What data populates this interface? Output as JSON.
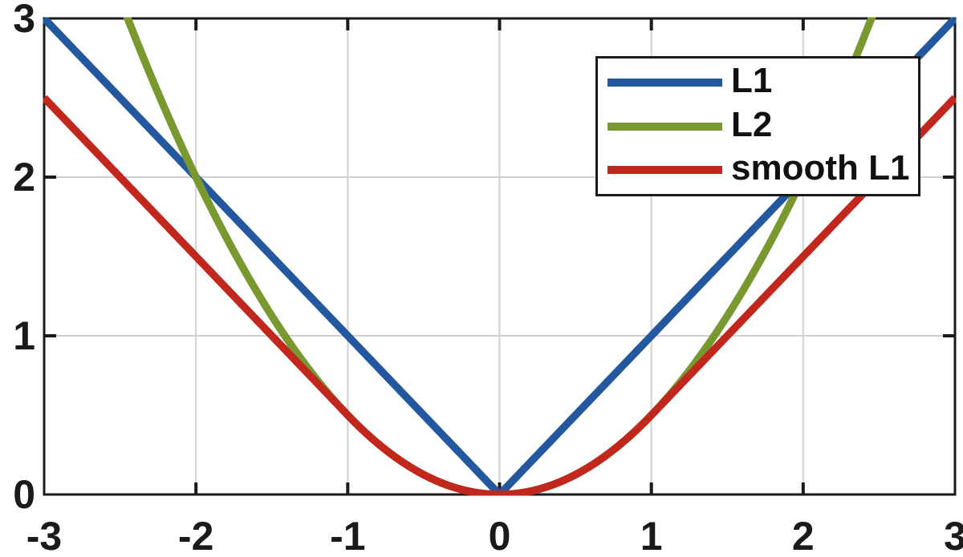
{
  "figure": {
    "background": "#ffffff",
    "axis_color": "#1a1a1a",
    "grid_color": "#d2d2d2",
    "tick_label_color": "#1a1a1a"
  },
  "chart_data": {
    "type": "line",
    "title": "",
    "xlabel": "",
    "ylabel": "",
    "xlim": [
      -3,
      3
    ],
    "ylim": [
      0,
      3
    ],
    "xticks": [
      -3,
      -2,
      -1,
      0,
      1,
      2,
      3
    ],
    "xtick_labels": [
      "-3",
      "-2",
      "-1",
      "0",
      "1",
      "2",
      "3"
    ],
    "yticks": [
      0,
      1,
      2,
      3
    ],
    "ytick_labels": [
      "0",
      "1",
      "2",
      "3"
    ],
    "grid": true,
    "legend_position": "top-right",
    "line_width": 9.5,
    "series": [
      {
        "id": "l1",
        "name": "L1",
        "color": "#24589e",
        "formula": "y = |x|",
        "sample_x": [
          -3,
          -2.5,
          -2,
          -1.5,
          -1,
          -0.5,
          0,
          0.5,
          1,
          1.5,
          2,
          2.5,
          3
        ],
        "sample_y": [
          3,
          2.5,
          2,
          1.5,
          1,
          0.5,
          0,
          0.5,
          1,
          1.5,
          2,
          2.5,
          3
        ]
      },
      {
        "id": "l2",
        "name": "L2",
        "color": "#78992f",
        "formula": "y = 0.5*x^2 (clipped at y=3, i.e. |x|<=2.449)",
        "sample_x": [
          -3,
          -2.5,
          -2,
          -1.5,
          -1,
          -0.5,
          0,
          0.5,
          1,
          1.5,
          2,
          2.5,
          3
        ],
        "sample_y": [
          4.5,
          3.125,
          2,
          1.125,
          0.5,
          0.125,
          0,
          0.125,
          0.5,
          1.125,
          2,
          3.125,
          4.5
        ]
      },
      {
        "id": "smooth_l1",
        "name": "smooth L1",
        "color": "#c1271d",
        "formula": "y = 0.5*x^2 if |x|<1 else |x|-0.5",
        "sample_x": [
          -3,
          -2.5,
          -2,
          -1.5,
          -1,
          -0.5,
          0,
          0.5,
          1,
          1.5,
          2,
          2.5,
          3
        ],
        "sample_y": [
          2.5,
          2,
          1.5,
          1,
          0.5,
          0.125,
          0,
          0.125,
          0.5,
          1,
          1.5,
          2,
          2.5
        ]
      }
    ]
  }
}
